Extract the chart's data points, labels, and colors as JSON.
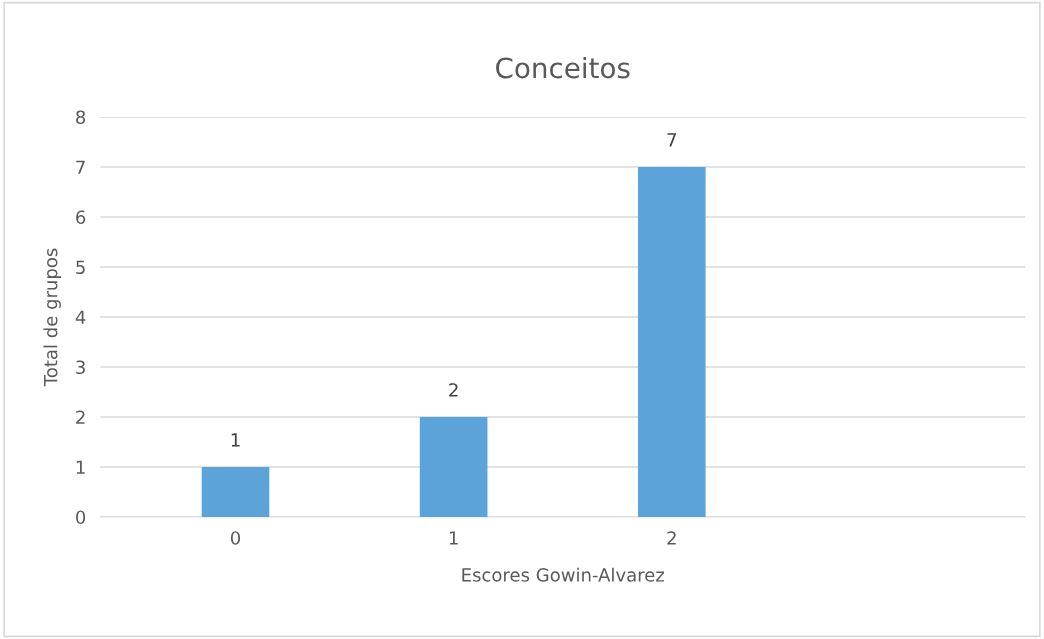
{
  "chart_data": {
    "type": "bar",
    "title": "Conceitos",
    "xlabel": "Escores Gowin-Alvarez",
    "ylabel": "Total de grupos",
    "categories": [
      "0",
      "1",
      "2",
      null
    ],
    "values": [
      1,
      2,
      7,
      null
    ],
    "color": "#5ba3d9",
    "ylim": [
      0,
      8
    ],
    "yticks": [
      0,
      1,
      2,
      3,
      4,
      5,
      6,
      7,
      8
    ],
    "grid": "y",
    "data_labels": true
  }
}
